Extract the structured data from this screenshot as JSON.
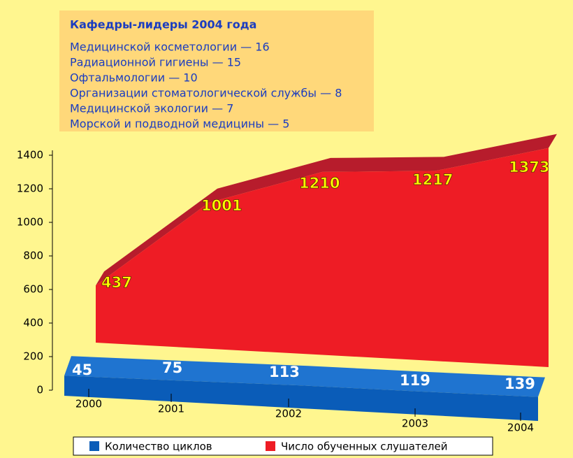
{
  "chart_data": {
    "type": "area3d",
    "title": "Кафедры-лидеры 2004 года",
    "annotations": [
      "Медицинской косметологии — 16",
      "Радиационной гигиены — 15",
      "Офтальмологии — 10",
      "Организации стоматологической службы — 8",
      "Медицинской экологии — 7",
      "Морской и подводной медицины — 5"
    ],
    "categories": [
      "2000",
      "2001",
      "2002",
      "2003",
      "2004"
    ],
    "series": [
      {
        "name": "Количество циклов",
        "color": "#0a5cb8",
        "values": [
          45,
          75,
          113,
          119,
          139
        ]
      },
      {
        "name": "Число обученных слушателей",
        "color": "#ee1c25",
        "values": [
          437,
          1001,
          1210,
          1217,
          1373
        ]
      }
    ],
    "ylim": [
      0,
      1400
    ],
    "yticks": [
      0,
      200,
      400,
      600,
      800,
      1000,
      1200,
      1400
    ],
    "legend": "bottom"
  }
}
